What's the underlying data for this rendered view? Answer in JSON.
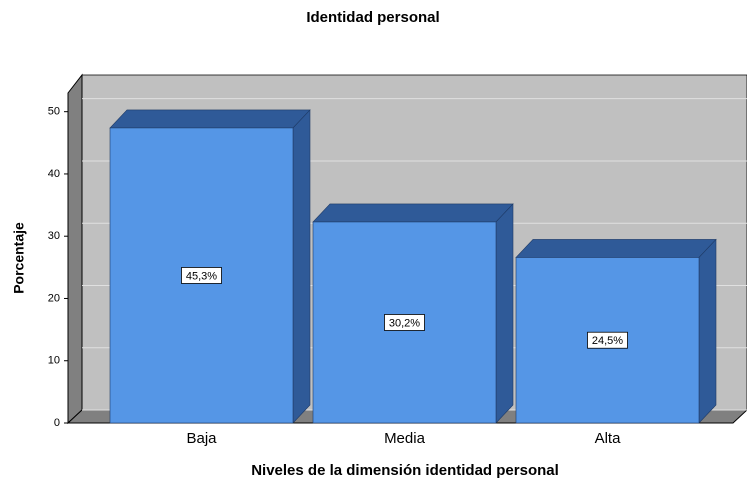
{
  "chart_data": {
    "type": "bar3d",
    "title": "Identidad personal",
    "x_label": "Niveles de la dimensión identidad personal",
    "y_label": "Porcentaje",
    "categories": [
      "Baja",
      "Media",
      "Alta"
    ],
    "values": [
      45.3,
      30.2,
      24.5
    ],
    "value_labels": [
      "45,3%",
      "30,2%",
      "24,5%"
    ],
    "color": "#5596e6",
    "side_color": "#2f5a98",
    "ylim": [
      0,
      53
    ],
    "yticks": [
      0,
      10,
      20,
      30,
      40,
      50
    ],
    "grid": true
  }
}
